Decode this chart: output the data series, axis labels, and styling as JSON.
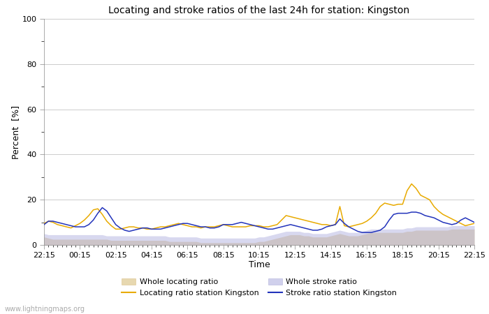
{
  "title": "Locating and stroke ratios of the last 24h for station: Kingston",
  "xlabel": "Time",
  "ylabel": "Percent  [%]",
  "ylim": [
    0,
    100
  ],
  "yticks_major": [
    0,
    20,
    40,
    60,
    80,
    100
  ],
  "yticks_minor": [
    10,
    30,
    50,
    70,
    90
  ],
  "x_tick_labels": [
    "22:15",
    "00:15",
    "02:15",
    "04:15",
    "06:15",
    "08:15",
    "10:15",
    "12:15",
    "14:15",
    "16:15",
    "18:15",
    "20:15",
    "22:15"
  ],
  "watermark": "www.lightningmaps.org",
  "bg_color": "#ffffff",
  "plot_bg_color": "#ffffff",
  "grid_color": "#cccccc",
  "locating_station": [
    9.5,
    10.5,
    10.0,
    9.0,
    8.5,
    8.0,
    7.5,
    8.5,
    9.5,
    11.0,
    13.0,
    15.5,
    16.0,
    13.5,
    10.5,
    8.5,
    7.0,
    7.0,
    7.5,
    8.0,
    8.0,
    7.5,
    7.5,
    7.0,
    7.0,
    7.5,
    8.0,
    8.0,
    8.5,
    9.0,
    9.5,
    9.0,
    8.5,
    8.0,
    8.0,
    7.5,
    8.0,
    8.0,
    8.0,
    8.5,
    9.0,
    8.5,
    8.0,
    8.0,
    8.0,
    8.0,
    8.5,
    8.5,
    8.5,
    8.0,
    8.0,
    8.5,
    9.0,
    11.0,
    13.0,
    12.5,
    12.0,
    11.5,
    11.0,
    10.5,
    10.0,
    9.5,
    9.0,
    9.0,
    8.5,
    9.0,
    17.0,
    8.5,
    8.0,
    8.5,
    9.0,
    9.5,
    10.5,
    12.0,
    14.0,
    17.0,
    18.5,
    18.0,
    17.5,
    18.0,
    18.0,
    24.0,
    27.0,
    25.0,
    22.0,
    21.0,
    20.0,
    17.0,
    15.0,
    13.5,
    12.5,
    11.5,
    10.5,
    9.5,
    8.5,
    9.0,
    9.5
  ],
  "stroke_station": [
    9.0,
    10.5,
    10.5,
    10.0,
    9.5,
    9.0,
    8.5,
    8.0,
    8.0,
    8.0,
    9.0,
    11.0,
    14.0,
    16.5,
    15.0,
    12.0,
    9.0,
    7.5,
    6.5,
    6.0,
    6.5,
    7.0,
    7.5,
    7.5,
    7.0,
    7.0,
    7.0,
    7.5,
    8.0,
    8.5,
    9.0,
    9.5,
    9.5,
    9.0,
    8.5,
    8.0,
    8.0,
    7.5,
    7.5,
    8.0,
    9.0,
    9.0,
    9.0,
    9.5,
    10.0,
    9.5,
    9.0,
    8.5,
    8.0,
    7.5,
    7.0,
    7.0,
    7.5,
    8.0,
    8.5,
    9.0,
    8.5,
    8.0,
    7.5,
    7.0,
    6.5,
    6.5,
    7.0,
    8.0,
    8.5,
    9.0,
    11.5,
    9.5,
    8.0,
    7.0,
    6.0,
    5.5,
    5.5,
    5.5,
    6.0,
    6.5,
    8.0,
    11.0,
    13.5,
    14.0,
    14.0,
    14.0,
    14.5,
    14.5,
    14.0,
    13.0,
    12.5,
    12.0,
    11.0,
    10.0,
    9.5,
    9.0,
    9.5,
    11.0,
    12.0,
    11.0,
    10.0
  ],
  "whole_locating": [
    3.5,
    3.0,
    2.5,
    2.5,
    2.5,
    2.5,
    2.5,
    2.5,
    2.5,
    2.5,
    2.5,
    2.5,
    2.5,
    2.5,
    2.5,
    2.0,
    2.0,
    2.0,
    2.0,
    2.0,
    2.0,
    2.0,
    2.0,
    2.0,
    2.0,
    2.0,
    2.0,
    2.0,
    1.5,
    1.5,
    1.5,
    1.5,
    1.5,
    1.5,
    1.5,
    1.0,
    1.0,
    1.0,
    1.0,
    1.0,
    1.0,
    1.0,
    1.0,
    1.0,
    1.0,
    1.0,
    1.0,
    1.0,
    1.5,
    1.5,
    2.0,
    2.5,
    3.0,
    3.5,
    4.0,
    4.5,
    4.5,
    4.5,
    4.0,
    4.0,
    3.5,
    3.5,
    3.5,
    3.5,
    4.0,
    4.5,
    5.0,
    4.5,
    4.0,
    4.0,
    4.0,
    4.5,
    5.0,
    5.5,
    5.5,
    5.5,
    5.5,
    5.5,
    5.5,
    5.5,
    5.5,
    6.0,
    6.0,
    6.5,
    6.5,
    6.5,
    6.5,
    6.5,
    6.5,
    6.5,
    6.5,
    7.0,
    7.0,
    7.0,
    7.0,
    7.0,
    7.0
  ],
  "whole_stroke": [
    5.0,
    4.5,
    4.5,
    4.5,
    4.5,
    4.5,
    4.5,
    4.5,
    4.5,
    4.5,
    4.5,
    4.5,
    4.5,
    4.5,
    4.0,
    4.0,
    4.0,
    4.0,
    4.0,
    4.0,
    4.0,
    4.0,
    4.0,
    4.0,
    4.0,
    4.0,
    4.0,
    4.0,
    3.5,
    3.5,
    3.5,
    3.5,
    3.5,
    3.5,
    3.5,
    3.0,
    3.0,
    3.0,
    3.0,
    3.0,
    3.0,
    3.0,
    3.0,
    3.0,
    3.0,
    3.0,
    3.0,
    3.0,
    3.5,
    3.5,
    4.0,
    4.5,
    5.0,
    5.5,
    6.0,
    6.0,
    6.0,
    6.0,
    5.5,
    5.5,
    5.0,
    5.0,
    5.0,
    5.0,
    5.5,
    6.0,
    6.5,
    6.0,
    5.5,
    5.5,
    5.5,
    6.0,
    6.5,
    7.0,
    7.0,
    7.0,
    7.0,
    7.0,
    7.0,
    7.0,
    7.0,
    7.5,
    7.5,
    8.0,
    8.0,
    8.0,
    8.0,
    8.0,
    8.0,
    8.0,
    8.0,
    8.5,
    8.5,
    8.5,
    8.5,
    8.5,
    8.5
  ]
}
